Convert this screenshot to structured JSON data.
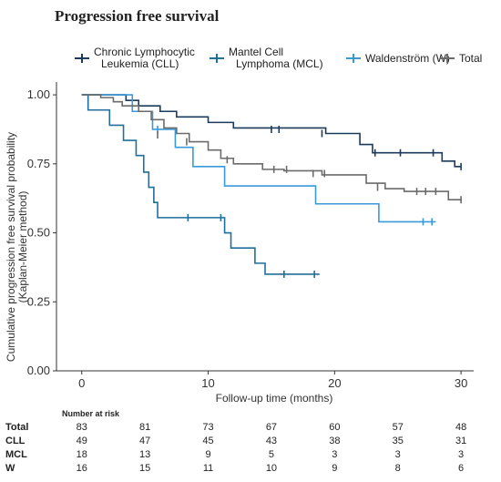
{
  "title": "Progression free survival",
  "chart_data": {
    "type": "line",
    "subtype": "kaplan-meier",
    "xlabel": "Follow-up time (months)",
    "ylabel": [
      "Cumulative progression free survival probability",
      "(Kaplan-Meier method)"
    ],
    "xlim": [
      -2,
      31
    ],
    "ylim": [
      0,
      1.03
    ],
    "x_ticks": [
      0,
      10,
      20,
      30
    ],
    "y_ticks": [
      0,
      0.25,
      0.5,
      0.75,
      1.0
    ],
    "y_tick_labels": [
      "0.00",
      "0.25",
      "0.50",
      "0.75",
      "1.00"
    ],
    "grid": false,
    "legend_position": "top",
    "series": [
      {
        "name": "Chronic Lymphocytic\nLeukemia (CLL)",
        "color": "#1b3a5c",
        "steps": [
          [
            0,
            1.0
          ],
          [
            3.5,
            0.98
          ],
          [
            4.5,
            0.96
          ],
          [
            6.2,
            0.94
          ],
          [
            7.5,
            0.92
          ],
          [
            10,
            0.9
          ],
          [
            12,
            0.88
          ],
          [
            19.3,
            0.86
          ],
          [
            22,
            0.82
          ],
          [
            23,
            0.79
          ],
          [
            28.5,
            0.76
          ],
          [
            29.5,
            0.74
          ],
          [
            30,
            0.74
          ]
        ],
        "censors": [
          [
            15,
            0.875
          ],
          [
            15.6,
            0.875
          ],
          [
            19,
            0.86
          ],
          [
            23.2,
            0.79
          ],
          [
            25.2,
            0.79
          ],
          [
            27.8,
            0.79
          ],
          [
            30,
            0.74
          ]
        ]
      },
      {
        "name": "Mantel Cell\nLymphoma (MCL)",
        "color": "#1f6e9c",
        "steps": [
          [
            0,
            1.0
          ],
          [
            0.5,
            0.945
          ],
          [
            2.2,
            0.89
          ],
          [
            3.3,
            0.835
          ],
          [
            4.3,
            0.78
          ],
          [
            4.9,
            0.72
          ],
          [
            5.3,
            0.665
          ],
          [
            5.7,
            0.61
          ],
          [
            6.0,
            0.555
          ],
          [
            11.3,
            0.5
          ],
          [
            11.8,
            0.445
          ],
          [
            13.7,
            0.39
          ],
          [
            14.5,
            0.35
          ],
          [
            18.8,
            0.35
          ]
        ],
        "censors": [
          [
            8.4,
            0.555
          ],
          [
            11,
            0.555
          ],
          [
            16,
            0.35
          ],
          [
            18.4,
            0.35
          ]
        ]
      },
      {
        "name": "Waldenström (W)",
        "color": "#3a9ad9",
        "steps": [
          [
            0,
            1.0
          ],
          [
            4.0,
            0.94
          ],
          [
            5.6,
            0.875
          ],
          [
            7.4,
            0.81
          ],
          [
            8.8,
            0.74
          ],
          [
            11.3,
            0.67
          ],
          [
            18.5,
            0.605
          ],
          [
            23.5,
            0.54
          ],
          [
            28,
            0.54
          ]
        ],
        "censors": [
          [
            6,
            0.875
          ],
          [
            27,
            0.54
          ],
          [
            27.7,
            0.54
          ]
        ]
      },
      {
        "name": "Total",
        "color": "#6b6b6b",
        "steps": [
          [
            0,
            1.0
          ],
          [
            1.5,
            0.99
          ],
          [
            2.5,
            0.975
          ],
          [
            3.2,
            0.96
          ],
          [
            4.5,
            0.94
          ],
          [
            5.5,
            0.91
          ],
          [
            6.5,
            0.88
          ],
          [
            7.5,
            0.86
          ],
          [
            8.5,
            0.83
          ],
          [
            10,
            0.8
          ],
          [
            11,
            0.77
          ],
          [
            12,
            0.75
          ],
          [
            14.3,
            0.73
          ],
          [
            16,
            0.725
          ],
          [
            19,
            0.71
          ],
          [
            22.5,
            0.68
          ],
          [
            24,
            0.66
          ],
          [
            25.5,
            0.65
          ],
          [
            28,
            0.65
          ],
          [
            29,
            0.62
          ],
          [
            30,
            0.62
          ]
        ],
        "censors": [
          [
            6,
            0.855
          ],
          [
            8.3,
            0.83
          ],
          [
            11.5,
            0.765
          ],
          [
            15.2,
            0.73
          ],
          [
            16.2,
            0.73
          ],
          [
            18.3,
            0.715
          ],
          [
            19.2,
            0.715
          ],
          [
            23.4,
            0.665
          ],
          [
            26.5,
            0.65
          ],
          [
            27.2,
            0.65
          ],
          [
            28,
            0.65
          ],
          [
            30,
            0.62
          ]
        ]
      }
    ],
    "risk_table": {
      "title": "Number at risk",
      "times": [
        0,
        5,
        10,
        15,
        20,
        25,
        30
      ],
      "rows": [
        {
          "label": "Total",
          "values": [
            "83",
            "81",
            "73",
            "67",
            "60",
            "57",
            "48"
          ]
        },
        {
          "label": "CLL",
          "values": [
            "49",
            "47",
            "45",
            "43",
            "38",
            "35",
            "31"
          ]
        },
        {
          "label": "MCL",
          "values": [
            "18",
            "13",
            "9",
            "5",
            "3",
            "3",
            "3"
          ]
        },
        {
          "label": "W",
          "values": [
            "16",
            "15",
            "11",
            "10",
            "9",
            "8",
            "6"
          ]
        }
      ]
    }
  }
}
